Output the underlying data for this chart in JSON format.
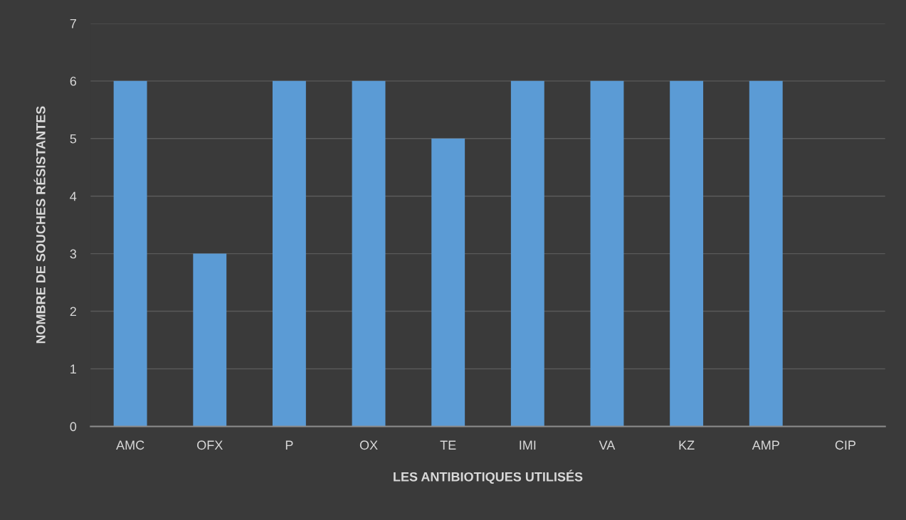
{
  "chart_data": {
    "type": "bar",
    "xlabel": "LES ANTIBIOTIQUES UTILISÉS",
    "ylabel": "NOMBRE DE SOUCHES RÉSISTANTES",
    "categories": [
      "AMC",
      "OFX",
      "P",
      "OX",
      "TE",
      "IMI",
      "VA",
      "KZ",
      "AMP",
      "CIP"
    ],
    "values": [
      6,
      3,
      6,
      6,
      5,
      6,
      6,
      6,
      6,
      0
    ],
    "color": "#5b9bd5",
    "ylim": [
      0,
      7
    ],
    "yticks": [
      0,
      1,
      2,
      3,
      4,
      5,
      6,
      7
    ],
    "grid": "y",
    "legend": false
  }
}
